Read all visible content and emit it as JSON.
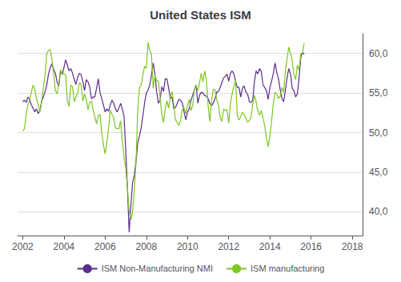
{
  "chart_data": {
    "type": "line",
    "title": "United States ISM",
    "x": [
      2002,
      2002.0833333333333,
      2002.1666666666667,
      2002.25,
      2002.3333333333333,
      2002.4166666666667,
      2002.5,
      2002.5833333333333,
      2002.6666666666667,
      2002.75,
      2002.8333333333333,
      2002.9166666666667,
      2003,
      2003.0833333333333,
      2003.1666666666667,
      2003.25,
      2003.3333333333333,
      2003.4166666666667,
      2003.5,
      2003.5833333333333,
      2003.6666666666667,
      2003.75,
      2003.8333333333333,
      2003.9166666666667,
      2004,
      2004.0833333333333,
      2004.1666666666667,
      2004.25,
      2004.3333333333333,
      2004.4166666666667,
      2004.5,
      2004.5833333333333,
      2004.6666666666667,
      2004.75,
      2004.8333333333333,
      2004.9166666666667,
      2005,
      2005.0833333333333,
      2005.1666666666667,
      2005.25,
      2005.3333333333333,
      2005.4166666666667,
      2005.5,
      2005.5833333333333,
      2005.6666666666667,
      2005.75,
      2005.8333333333333,
      2005.9166666666667,
      2006,
      2006.0833333333333,
      2006.1666666666667,
      2006.25,
      2006.3333333333333,
      2006.4166666666667,
      2006.5,
      2006.5833333333333,
      2006.6666666666667,
      2006.75,
      2006.8333333333333,
      2006.9166666666667,
      2007,
      2007.0833333333333,
      2007.1666666666667,
      2007.25,
      2007.3333333333333,
      2007.4166666666667,
      2007.5,
      2007.5833333333333,
      2007.6666666666667,
      2007.75,
      2007.8333333333333,
      2007.9166666666667,
      2008,
      2008.0833333333333,
      2008.1666666666667,
      2008.25,
      2008.3333333333333,
      2008.4166666666667,
      2008.5,
      2008.5833333333333,
      2008.6666666666667,
      2008.75,
      2008.8333333333333,
      2008.9166666666667,
      2009,
      2009.0833333333333,
      2009.1666666666667,
      2009.25,
      2009.3333333333333,
      2009.4166666666667,
      2009.5,
      2009.5833333333333,
      2009.6666666666667,
      2009.75,
      2009.8333333333333,
      2009.9166666666667,
      2010,
      2010.0833333333333,
      2010.1666666666667,
      2010.25,
      2010.3333333333333,
      2010.4166666666667,
      2010.5,
      2010.5833333333333,
      2010.6666666666667,
      2010.75,
      2010.8333333333333,
      2010.9166666666667,
      2011,
      2011.0833333333333,
      2011.1666666666667,
      2011.25,
      2011.3333333333333,
      2011.4166666666667,
      2011.5,
      2011.5833333333333,
      2011.6666666666667,
      2011.75,
      2011.8333333333333,
      2011.9166666666667,
      2012,
      2012.0833333333333,
      2012.1666666666667,
      2012.25,
      2012.3333333333333,
      2012.4166666666667,
      2012.5,
      2012.5833333333333,
      2012.6666666666667,
      2012.75,
      2012.8333333333333,
      2012.9166666666667,
      2013,
      2013.0833333333333,
      2013.1666666666667,
      2013.25,
      2013.3333333333333,
      2013.4166666666667,
      2013.5,
      2013.5833333333333,
      2013.6666666666667,
      2013.75,
      2013.8333333333333,
      2013.9166666666667,
      2014,
      2014.0833333333333,
      2014.1666666666667,
      2014.25,
      2014.3333333333333,
      2014.4166666666667,
      2014.5,
      2014.5833333333333,
      2014.6666666666667,
      2014.75,
      2014.8333333333333,
      2014.9166666666667,
      2015,
      2015.0833333333333,
      2015.1666666666667,
      2015.25,
      2015.3333333333333,
      2015.4166666666667,
      2015.5,
      2015.5833333333333,
      2015.6666666666667
    ],
    "series": [
      {
        "name": "ISM Non-Manufacturing NMI",
        "color": "#5b2d8e",
        "values": [
          53.9,
          54.1,
          53.8,
          54.5,
          54.2,
          53.5,
          53.1,
          52.6,
          53.0,
          52.4,
          52.8,
          54.0,
          54.5,
          55.2,
          56.0,
          57.4,
          58.2,
          58.7,
          58.0,
          57.5,
          56.4,
          55.9,
          57.8,
          57.4,
          58.2,
          59.2,
          58.5,
          57.8,
          58.1,
          57.5,
          56.7,
          56.1,
          57.0,
          57.5,
          57.3,
          56.5,
          55.3,
          56.7,
          56.4,
          55.8,
          54.3,
          54.5,
          54.5,
          55.6,
          56.8,
          55.1,
          54.3,
          53.5,
          52.6,
          53.0,
          52.7,
          53.5,
          54.1,
          53.7,
          53.0,
          52.6,
          53.1,
          53.7,
          53.0,
          52.1,
          47.8,
          42.9,
          37.4,
          40.8,
          43.7,
          44.6,
          46.4,
          48.7,
          49.6,
          50.6,
          52.1,
          53.8,
          55.0,
          55.4,
          56.0,
          57.3,
          58.8,
          57.4,
          55.2,
          53.7,
          54.1,
          55.8,
          55.2,
          56.8,
          56.8,
          55.6,
          54.3,
          54.5,
          53.0,
          53.2,
          53.7,
          54.2,
          54.1,
          53.7,
          52.6,
          51.6,
          52.6,
          53.0,
          54.1,
          54.7,
          55.4,
          56.0,
          53.7,
          54.7,
          55.1,
          55.0,
          54.7,
          54.6,
          54.3,
          53.7,
          53.4,
          53.7,
          54.3,
          55.1,
          55.2,
          55.7,
          56.3,
          56.9,
          57.1,
          57.4,
          56.5,
          57.5,
          57.8,
          57.4,
          56.5,
          55.7,
          55.7,
          54.5,
          55.6,
          55.9,
          55.1,
          54.9,
          53.9,
          53.8,
          54.1,
          56.5,
          57.8,
          57.4,
          58.1,
          57.7,
          56.0,
          55.7,
          55.3,
          54.2,
          55.7,
          56.5,
          57.5,
          58.8,
          57.6,
          56.8,
          55.4,
          54.3,
          53.9,
          55.3,
          56.9,
          58.1,
          57.4,
          55.6,
          55.3,
          54.5,
          54.9,
          56.9,
          59.5,
          60.1,
          59.9
        ]
      },
      {
        "name": "ISM manufacturing",
        "color": "#7ec620",
        "values": [
          50.2,
          50.5,
          52.3,
          53.5,
          54.2,
          55.1,
          56.0,
          55.5,
          54.3,
          53.5,
          52.6,
          53.9,
          55.7,
          57.3,
          60.0,
          60.4,
          60.5,
          59.2,
          57.4,
          55.3,
          54.9,
          56.2,
          58.0,
          57.3,
          57.5,
          57.3,
          54.0,
          53.3,
          56.0,
          55.8,
          53.9,
          54.5,
          55.0,
          56.3,
          56.1,
          54.0,
          54.9,
          54.2,
          52.9,
          53.8,
          54.0,
          52.9,
          52.0,
          51.1,
          52.1,
          52.3,
          50.0,
          48.5,
          47.3,
          48.7,
          50.5,
          52.8,
          52.3,
          51.9,
          50.6,
          50.5,
          50.5,
          51.5,
          49.0,
          47.0,
          45.5,
          43.0,
          40.0,
          39.0,
          40.0,
          42.8,
          46.3,
          52.9,
          55.7,
          56.0,
          57.3,
          58.4,
          58.1,
          61.4,
          60.4,
          59.9,
          55.6,
          57.3,
          56.6,
          56.5,
          54.5,
          52.3,
          51.3,
          53.0,
          54.0,
          53.1,
          54.5,
          55.2,
          53.5,
          51.6,
          51.3,
          50.9,
          51.6,
          52.9,
          53.1,
          52.4,
          53.4,
          54.2,
          52.8,
          53.4,
          55.4,
          55.9,
          55.3,
          56.3,
          57.5,
          56.4,
          57.8,
          56.6,
          53.4,
          51.4,
          54.0,
          55.5,
          55.4,
          54.2,
          53.5,
          52.0,
          51.4,
          53.0,
          52.8,
          52.9,
          51.2,
          53.7,
          54.9,
          55.9,
          56.6,
          52.1,
          51.6,
          52.0,
          52.6,
          52.3,
          51.8,
          51.3,
          51.5,
          51.9,
          53.6,
          54.7,
          53.9,
          52.7,
          52.2,
          52.8,
          51.9,
          50.8,
          49.4,
          48.2,
          49.5,
          51.5,
          53.7,
          55.1,
          54.9,
          54.3,
          54.6,
          55.7,
          55.1,
          57.7,
          59.3,
          60.8,
          60.0,
          59.1,
          57.3,
          56.7,
          58.5,
          57.9,
          59.9,
          60.1,
          61.3
        ]
      }
    ],
    "xlim": [
      2001.75,
      2018.5
    ],
    "xticks": [
      2002,
      2004,
      2006,
      2008,
      2010,
      2012,
      2014,
      2016,
      2018
    ],
    "ylim": [
      37,
      62.5
    ],
    "yticks": [
      {
        "value": 40.0,
        "label": "40,0"
      },
      {
        "value": 45.0,
        "label": "45,0"
      },
      {
        "value": 50.0,
        "label": "50,0"
      },
      {
        "value": 55.0,
        "label": "55,0"
      },
      {
        "value": 60.0,
        "label": "60,0"
      }
    ],
    "grid": "y",
    "legend": "bottom"
  }
}
